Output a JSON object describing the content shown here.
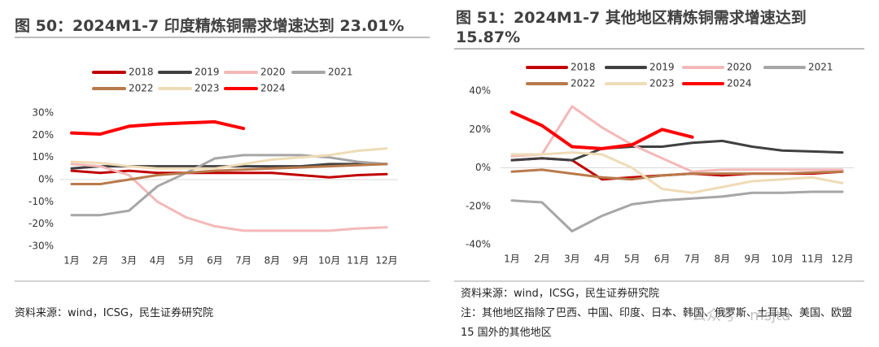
{
  "chart_data": [
    {
      "type": "line",
      "title": "图 50：2024M1-7 印度精炼铜需求增速达到 23.01%",
      "categories": [
        "1月",
        "2月",
        "3月",
        "4月",
        "5月",
        "6月",
        "7月",
        "8月",
        "9月",
        "10月",
        "11月",
        "12月"
      ],
      "ylim": [
        -30,
        30
      ],
      "yticks": [
        {
          "value": -30,
          "label": "-30%"
        },
        {
          "value": -20,
          "label": "-20%"
        },
        {
          "value": -10,
          "label": "-10%"
        },
        {
          "value": 0,
          "label": "0%"
        },
        {
          "value": 10,
          "label": "10%"
        },
        {
          "value": 20,
          "label": "20%"
        },
        {
          "value": 30,
          "label": "30%"
        }
      ],
      "series": [
        {
          "name": "2018",
          "color": "#c00000",
          "values": [
            4,
            3,
            4,
            3,
            3,
            3,
            3,
            3,
            2,
            1,
            2,
            2.5
          ]
        },
        {
          "name": "2019",
          "color": "#404040",
          "values": [
            5,
            6,
            6,
            6,
            6,
            6,
            6,
            6,
            6,
            7,
            7,
            7
          ]
        },
        {
          "name": "2020",
          "color": "#f4b8b8",
          "values": [
            7,
            6,
            2,
            -10,
            -17,
            -21,
            -23,
            -23,
            -23,
            -23,
            -22,
            -21.5
          ]
        },
        {
          "name": "2021",
          "color": "#a6a6a6",
          "values": [
            -16,
            -16,
            -14,
            -3,
            3,
            9.5,
            11,
            11,
            11,
            10,
            8,
            7
          ]
        },
        {
          "name": "2022",
          "color": "#b87a4b",
          "values": [
            -2,
            -2,
            0,
            2,
            3,
            4,
            4.5,
            5,
            5.5,
            6,
            6.5,
            7
          ]
        },
        {
          "name": "2023",
          "color": "#eedcb6",
          "values": [
            8,
            7.5,
            6,
            5,
            5,
            5,
            7,
            9,
            10,
            11,
            13,
            14
          ]
        },
        {
          "name": "2024",
          "color": "#ff0000",
          "values": [
            21,
            20.5,
            24,
            25,
            25.5,
            26,
            23,
            null,
            null,
            null,
            null,
            null
          ]
        }
      ],
      "source": "资料来源：wind，ICSG，民生证券研究院"
    },
    {
      "type": "line",
      "title": "图 51：2024M1-7 其他地区精炼铜需求增速达到 15.87%",
      "categories": [
        "1月",
        "2月",
        "3月",
        "4月",
        "5月",
        "6月",
        "7月",
        "8月",
        "9月",
        "10月",
        "11月",
        "12月"
      ],
      "ylim": [
        -40,
        40
      ],
      "yticks": [
        {
          "value": -40,
          "label": "-40%"
        },
        {
          "value": -20,
          "label": "-20%"
        },
        {
          "value": 0,
          "label": "0%"
        },
        {
          "value": 20,
          "label": "20%"
        },
        {
          "value": 40,
          "label": "40%"
        }
      ],
      "series": [
        {
          "name": "2018",
          "color": "#c00000",
          "values": [
            4,
            5,
            4,
            -6,
            -5,
            -4,
            -3,
            -4,
            -3,
            -3,
            -3,
            -2
          ]
        },
        {
          "name": "2019",
          "color": "#404040",
          "values": [
            4,
            5,
            4,
            10,
            11,
            11,
            13,
            14,
            11,
            9,
            8.5,
            8
          ]
        },
        {
          "name": "2020",
          "color": "#f4b8b8",
          "values": [
            6,
            7,
            32,
            21,
            12,
            5,
            -2,
            -1,
            -1,
            -1,
            -1,
            -1
          ]
        },
        {
          "name": "2021",
          "color": "#a6a6a6",
          "values": [
            -17,
            -18,
            -33,
            -25,
            -19,
            -17,
            -16,
            -15,
            -13,
            -13,
            -12.5,
            -12.5
          ]
        },
        {
          "name": "2022",
          "color": "#b87a4b",
          "values": [
            -2,
            -1,
            -3,
            -5,
            -6,
            -4,
            -3,
            -3,
            -3,
            -3,
            -2.5,
            -2
          ]
        },
        {
          "name": "2023",
          "color": "#eedcb6",
          "values": [
            7,
            7,
            8,
            7,
            0,
            -11,
            -13,
            -10,
            -7,
            -6,
            -5,
            -8
          ]
        },
        {
          "name": "2024",
          "color": "#ff0000",
          "values": [
            29,
            22,
            11,
            10,
            12,
            20,
            16,
            null,
            null,
            null,
            null,
            null
          ]
        }
      ],
      "source": "资料来源：wind，ICSG，民生证券研究院",
      "note": "注：其他地区指除了巴西、中国、印度、日本、韩国、俄罗斯、土耳其、美国、欧盟 15 国外的其他地区"
    }
  ],
  "watermark": "公众号 · msjtd"
}
